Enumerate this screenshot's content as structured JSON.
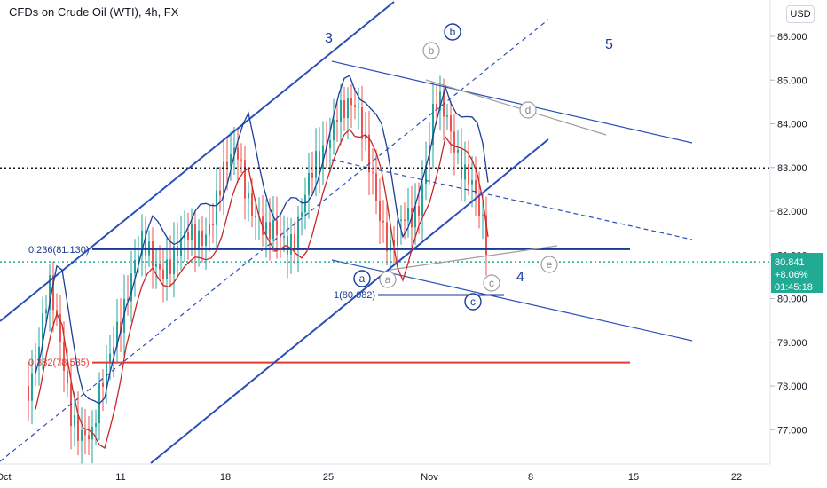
{
  "header": {
    "title": "CFDs on Crude Oil (WTI), 4h, FX",
    "currency_button": "USD"
  },
  "colors": {
    "up": "#26a69a",
    "down": "#ef5350",
    "channel": "#2a4fb8",
    "fib_blue": "#1a3a94",
    "fib_red": "#e53935",
    "ma_blue": "#1d3d99",
    "ma_red": "#c62828",
    "price_badge": "#22ab94",
    "dotted_level": "#131722"
  },
  "chart_data": {
    "type": "candlestick",
    "symbol": "CFDs on Crude Oil (WTI)",
    "interval": "4h",
    "source": "FX",
    "y_ticks": [
      "86.000",
      "85.000",
      "84.000",
      "83.000",
      "82.000",
      "81.000",
      "80.000",
      "79.000",
      "78.000",
      "77.000"
    ],
    "y_range": [
      76.3,
      86.6
    ],
    "x_ticks": [
      "Oct",
      "11",
      "18",
      "25",
      "Nov",
      "8",
      "15",
      "22"
    ],
    "last_price": {
      "price": "80.841",
      "change": "+8.06%",
      "countdown": "01:45:18"
    },
    "fib_levels": [
      {
        "label": "0.236(81.130)",
        "value": 81.13
      },
      {
        "label": "0.382(78.535)",
        "value": 78.535
      },
      {
        "label": "1(80.082)",
        "value": 80.082
      }
    ],
    "dotted_level": 82.99,
    "wave_labels": [
      {
        "text": "3",
        "style": "plain"
      },
      {
        "text": "5",
        "style": "plain"
      },
      {
        "text": "4",
        "style": "plain"
      },
      {
        "text": "b",
        "style": "circle-blue"
      },
      {
        "text": "b",
        "style": "circle-gray"
      },
      {
        "text": "d",
        "style": "circle-gray"
      },
      {
        "text": "a",
        "style": "circle-blue"
      },
      {
        "text": "a",
        "style": "circle-gray"
      },
      {
        "text": "c",
        "style": "circle-gray"
      },
      {
        "text": "c",
        "style": "circle-blue"
      },
      {
        "text": "e",
        "style": "circle-gray"
      }
    ],
    "grid": false,
    "legend": "none"
  }
}
